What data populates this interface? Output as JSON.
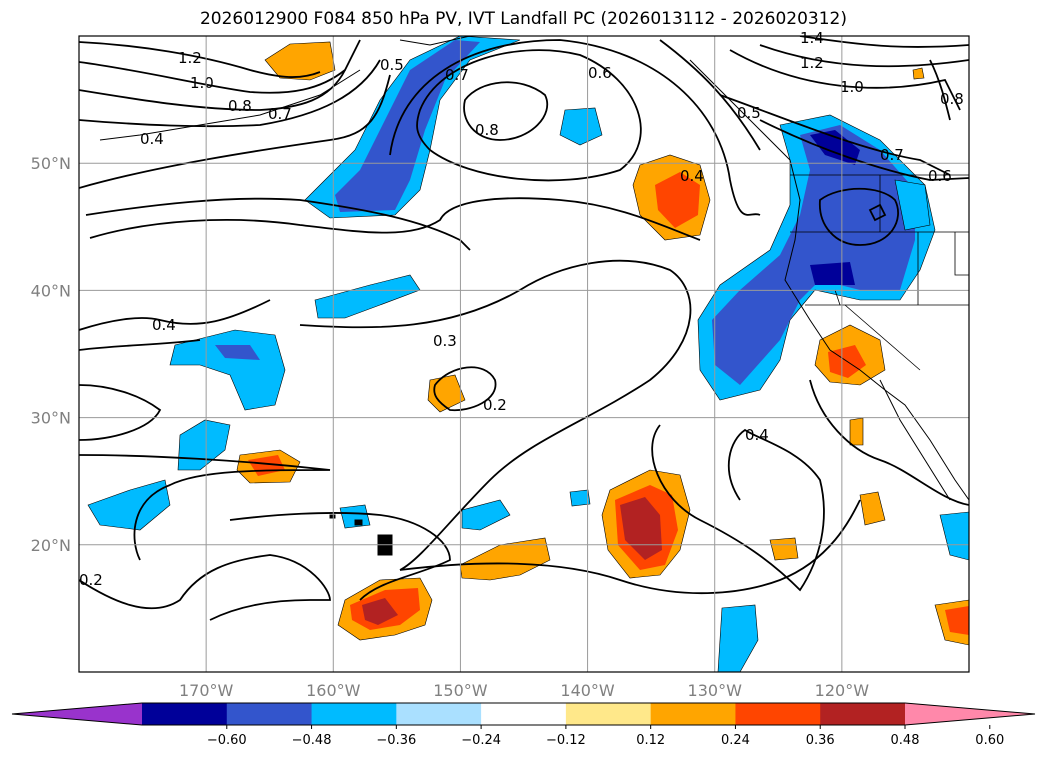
{
  "title": "2026012900 F084 850 hPa PV, IVT Landfall PC (2026013112 - 2026020312)",
  "map": {
    "lon_range": [
      -180,
      -110
    ],
    "lat_range": [
      10,
      60
    ],
    "lat_ticks": [
      {
        "value": 50,
        "label": "50°N"
      },
      {
        "value": 40,
        "label": "40°N"
      },
      {
        "value": 30,
        "label": "30°N"
      },
      {
        "value": 20,
        "label": "20°N"
      }
    ],
    "lon_ticks": [
      {
        "value": -170,
        "label": "170°W"
      },
      {
        "value": -160,
        "label": "160°W"
      },
      {
        "value": -150,
        "label": "150°W"
      },
      {
        "value": -140,
        "label": "140°W"
      },
      {
        "value": -130,
        "label": "130°W"
      },
      {
        "value": -120,
        "label": "120°W"
      }
    ],
    "grid": true
  },
  "colorbar": {
    "colors": [
      "#9933cc",
      "#000099",
      "#3355cc",
      "#00bbff",
      "#aae0ff",
      "#ffffff",
      "#ffe88a",
      "#ffa500",
      "#ff4500",
      "#b22222",
      "#ff88aa"
    ],
    "tick_labels": [
      "−0.60",
      "−0.48",
      "−0.36",
      "−0.24",
      "−0.12",
      "0.12",
      "0.24",
      "0.36",
      "0.48",
      "0.60"
    ],
    "extend": "both"
  },
  "contours": {
    "labels": [
      "1.2",
      "1.0",
      "0.8",
      "0.7",
      "0.4",
      "0.5",
      "0.7",
      "0.8",
      "0.6",
      "0.5",
      "1.4",
      "1.2",
      "1.0",
      "0.8",
      "0.7",
      "0.6",
      "0.4",
      "0.4",
      "0.3",
      "0.2",
      "0.4",
      "0.2"
    ]
  },
  "shading_anomalies": [
    {
      "lon": -157,
      "lat": 52,
      "value": -0.4
    },
    {
      "lon": -148,
      "lat": 56,
      "value": -0.35
    },
    {
      "lon": -121,
      "lat": 53,
      "value": -0.5
    },
    {
      "lon": -123,
      "lat": 40,
      "value": -0.5
    },
    {
      "lon": -127,
      "lat": 36,
      "value": -0.35
    },
    {
      "lon": -164,
      "lat": 34,
      "value": -0.35
    },
    {
      "lon": -157,
      "lat": 40,
      "value": -0.3
    },
    {
      "lon": -136,
      "lat": 21,
      "value": 0.5
    },
    {
      "lon": -159,
      "lat": 14,
      "value": 0.45
    },
    {
      "lon": -134,
      "lat": 47,
      "value": 0.4
    },
    {
      "lon": -120,
      "lat": 34,
      "value": 0.45
    },
    {
      "lon": -165,
      "lat": 26,
      "value": 0.4
    },
    {
      "lon": -112,
      "lat": 14,
      "value": 0.4
    }
  ]
}
